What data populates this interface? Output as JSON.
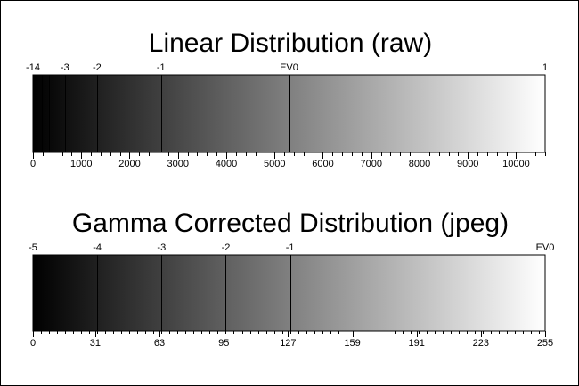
{
  "panels": [
    {
      "id": "linear",
      "title": "Linear Distribution (raw)",
      "axis": {
        "min": 0,
        "max": 10600,
        "labels": [
          "0",
          "1000",
          "2000",
          "3000",
          "4000",
          "5000",
          "6000",
          "7000",
          "8000",
          "9000",
          "10000"
        ],
        "label_values": [
          0,
          1000,
          2000,
          3000,
          4000,
          5000,
          6000,
          7000,
          8000,
          9000,
          10000
        ],
        "minor_step": 200
      },
      "ev_markers": [
        {
          "label": "-14",
          "value": 0
        },
        {
          "label": "-3",
          "value": 660
        },
        {
          "label": "-2",
          "value": 1325
        },
        {
          "label": "-1",
          "value": 2650
        },
        {
          "label": "EV0",
          "value": 5300
        },
        {
          "label": "1",
          "value": 10600
        }
      ],
      "stop_lines": [
        180,
        330,
        660,
        1325,
        2650,
        5300
      ],
      "gradient": {
        "start": "#000000",
        "end": "#ffffff",
        "end_at": 10600
      }
    },
    {
      "id": "gamma",
      "title": "Gamma Corrected Distribution (jpeg)",
      "axis": {
        "min": 0,
        "max": 255,
        "labels": [
          "0",
          "31",
          "63",
          "95",
          "127",
          "159",
          "191",
          "223",
          "255"
        ],
        "label_values": [
          0,
          31,
          63,
          95,
          127,
          159,
          191,
          223,
          255
        ],
        "minor_step": 4
      },
      "ev_markers": [
        {
          "label": "-5",
          "value": 0
        },
        {
          "label": "-4",
          "value": 32
        },
        {
          "label": "-3",
          "value": 64
        },
        {
          "label": "-2",
          "value": 96
        },
        {
          "label": "-1",
          "value": 128
        },
        {
          "label": "EV0",
          "value": 255
        }
      ],
      "stop_lines": [
        32,
        64,
        96,
        128
      ],
      "gradient": {
        "start": "#000000",
        "end": "#ffffff",
        "end_at": 255
      }
    }
  ]
}
